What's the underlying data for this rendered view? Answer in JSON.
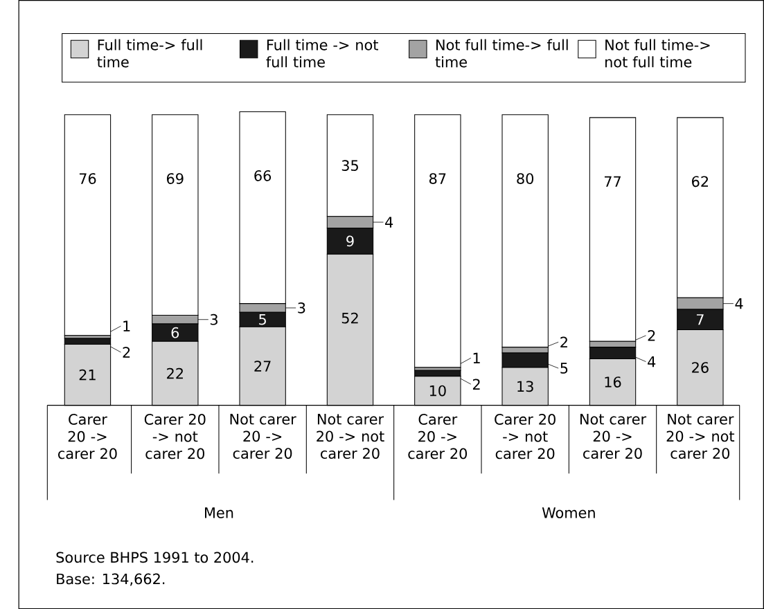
{
  "chart_data": {
    "type": "bar",
    "stacked": true,
    "data_labels": true,
    "legend": "top",
    "categories": [
      "Carer 20 -> carer 20",
      "Carer 20 -> not carer 20",
      "Not carer 20 -> carer 20",
      "Not carer 20 -> not carer 20",
      "Carer 20 -> carer 20",
      "Carer 20 -> not carer 20",
      "Not carer 20 -> carer 20",
      "Not carer 20 -> not carer 20"
    ],
    "series": [
      {
        "name": "Full time-> full time",
        "color": "#d3d3d3",
        "values": [
          21,
          22,
          27,
          52,
          10,
          13,
          16,
          26
        ]
      },
      {
        "name": "Full time -> not full time",
        "color": "#1a1a1a",
        "values": [
          2,
          6,
          5,
          9,
          2,
          5,
          4,
          7
        ]
      },
      {
        "name": "Not full time-> full time",
        "color": "#a3a3a3",
        "values": [
          1,
          3,
          3,
          4,
          1,
          2,
          2,
          4
        ]
      },
      {
        "name": "Not full time-> not full time",
        "color": "#ffffff",
        "values": [
          76,
          69,
          66,
          35,
          87,
          80,
          77,
          62
        ]
      }
    ],
    "annotations": [
      "Men",
      "Women",
      "Source BHPS 1991 to 2004.",
      "Base: 134,662."
    ]
  }
}
